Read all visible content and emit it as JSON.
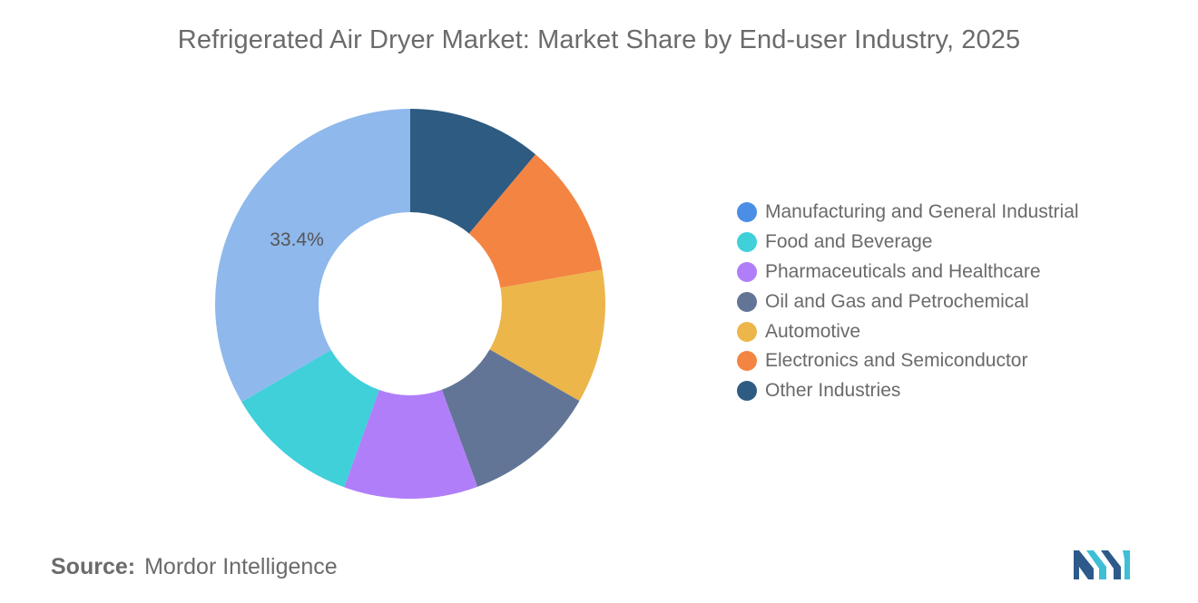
{
  "chart_data": {
    "type": "pie",
    "style": "donut",
    "title": "Refrigerated Air Dryer Market: Market Share by End-user Industry, 2025",
    "categories": [
      "Manufacturing and General Industrial",
      "Food and Beverage",
      "Pharmaceuticals and Healthcare",
      "Oil and Gas and Petrochemical",
      "Automotive",
      "Electronics and Semiconductor",
      "Other Industries"
    ],
    "values": [
      33.4,
      11.1,
      11.1,
      11.1,
      11.1,
      11.1,
      11.1
    ],
    "colors": [
      "#8fb8ec",
      "#3fd0da",
      "#b07ef9",
      "#637596",
      "#ecb64a",
      "#f48442",
      "#2e5b82"
    ],
    "legend_colors": [
      "#4a8ee6",
      "#3fd0da",
      "#b07ef9",
      "#637596",
      "#ecb64a",
      "#f48442",
      "#2e5b82"
    ],
    "data_labels": [
      {
        "category": "Manufacturing and General Industrial",
        "text": "33.4%"
      }
    ],
    "legend_position": "right",
    "start_angle_deg": 0,
    "direction": "clockwise_from_top_of_other_industries"
  },
  "source": {
    "label": "Source:",
    "value": "Mordor Intelligence"
  },
  "logo": {
    "icon": "mordor-intelligence-logo-icon",
    "colors": [
      "#2d5a8a",
      "#3fbfd6"
    ]
  }
}
